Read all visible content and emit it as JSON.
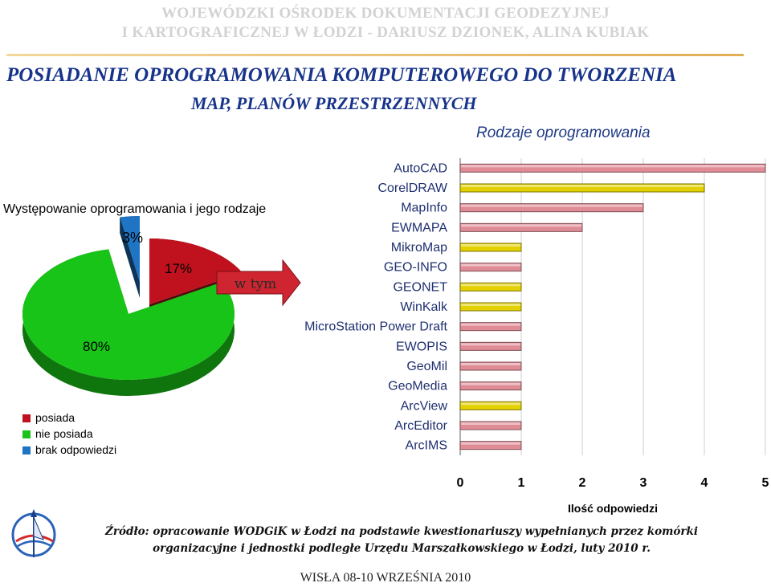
{
  "header": {
    "line1": "WOJEWÓDZKI OŚRODEK DOKUMENTACJI GEODEZYJNEJ",
    "line2": "I KARTOGRAFICZNEJ W ŁODZI - DARIUSZ DZIONEK, ALINA KUBIAK"
  },
  "title": {
    "line1": "POSIADANIE  OPROGRAMOWANIA KOMPUTEROWEGO DO TWORZENIA",
    "line2": "MAP, PLANÓW PRZESTRZENNYCH"
  },
  "arrow_label": "w tym",
  "source_line1": "Źródło: opracowanie WODGiK w Łodzi na podstawie kwestionariuszy wypełnianych przez komórki",
  "source_line2": "organizacyjne i jednostki podległe Urzędu Marszałkowskiego w Łodzi, luty 2010 r.",
  "footer": "WISŁA 08-10 WRZEŚNIA 2010",
  "colors": {
    "posiada": "#c0121e",
    "nie_posiada": "#19c418",
    "brak": "#1f74c4",
    "bar_pink": "#e08c96",
    "bar_yellow": "#e2d000",
    "header_grey": "#d2d2d2",
    "title_blue": "#17338a"
  },
  "icons": [
    "wodgik-logo-icon",
    "right-arrow-icon"
  ],
  "chart_data": [
    {
      "type": "pie",
      "title": "Występowanie oprogramowania i jego rodzaje",
      "categories": [
        "posiada",
        "nie posiada",
        "brak odpowiedzi"
      ],
      "values": [
        17,
        80,
        3
      ],
      "labels": [
        "17%",
        "80%",
        "3%"
      ],
      "legend": "bottom-left"
    },
    {
      "type": "bar",
      "orientation": "horizontal",
      "title": "Rodzaje oprogramowania",
      "xlabel": "Ilość odpowiedzi",
      "categories": [
        "AutoCAD",
        "CorelDRAW",
        "MapInfo",
        "EWMAPA",
        "MikroMap",
        "GEO-INFO",
        "GEONET",
        "WinKalk",
        "MicroStation Power Draft",
        "EWOPIS",
        "GeoMil",
        "GeoMedia",
        "ArcView",
        "ArcEditor",
        "ArcIMS"
      ],
      "values": [
        5,
        4,
        3,
        2,
        1,
        1,
        1,
        1,
        1,
        1,
        1,
        1,
        1,
        1,
        1
      ],
      "bar_colors": [
        "pink",
        "yellow",
        "pink",
        "pink",
        "yellow",
        "pink",
        "yellow",
        "yellow",
        "pink",
        "pink",
        "pink",
        "pink",
        "yellow",
        "pink",
        "pink"
      ],
      "xlim": [
        0,
        5
      ],
      "xticks": [
        "0",
        "1",
        "2",
        "3",
        "4",
        "5"
      ],
      "grid": true
    }
  ]
}
